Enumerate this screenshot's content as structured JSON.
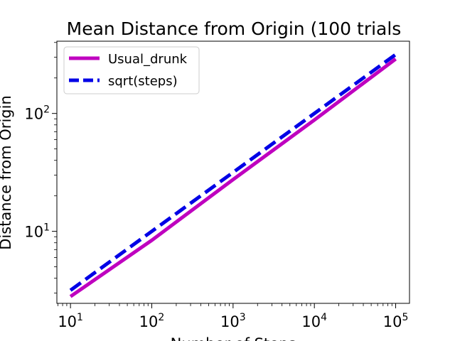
{
  "chart_data": {
    "type": "line",
    "title": "Mean Distance from Origin (100 trials",
    "xlabel": "Number of Steps",
    "ylabel": "Distance from Origin",
    "xscale": "log",
    "yscale": "log",
    "xlim": [
      6.8,
      148000
    ],
    "ylim": [
      2.45,
      410
    ],
    "grid": false,
    "legend": "top-left",
    "x_ticks": [
      {
        "value": 10,
        "base": "10",
        "exp": "1"
      },
      {
        "value": 100,
        "base": "10",
        "exp": "2"
      },
      {
        "value": 1000,
        "base": "10",
        "exp": "3"
      },
      {
        "value": 10000,
        "base": "10",
        "exp": "4"
      },
      {
        "value": 100000,
        "base": "10",
        "exp": "5"
      }
    ],
    "y_ticks": [
      {
        "value": 10,
        "base": "10",
        "exp": "1"
      },
      {
        "value": 100,
        "base": "10",
        "exp": "2"
      }
    ],
    "series": [
      {
        "name": "Usual_drunk",
        "color": "#bf00bf",
        "dash": "solid",
        "x": [
          10,
          100,
          1000,
          10000,
          100000
        ],
        "y": [
          2.8,
          8.4,
          27.5,
          88,
          290
        ]
      },
      {
        "name": "sqrt(steps)",
        "color": "#0000e6",
        "dash": "dashed",
        "x": [
          10,
          100,
          1000,
          10000,
          100000
        ],
        "y": [
          3.162,
          10,
          31.62,
          100,
          316.2
        ]
      }
    ]
  }
}
